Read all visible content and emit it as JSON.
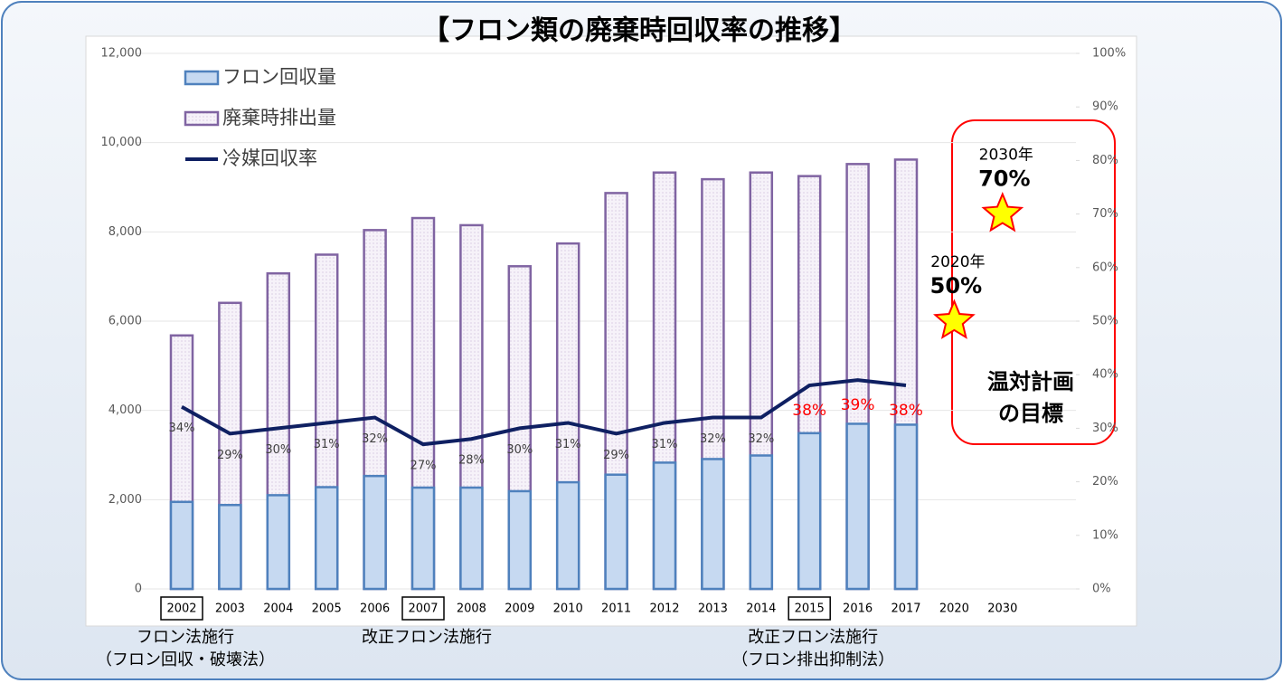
{
  "chart_data": {
    "type": "bar",
    "title": "【フロン類の廃棄時回収率の推移】",
    "categories": [
      "2002",
      "2003",
      "2004",
      "2005",
      "2006",
      "2007",
      "2008",
      "2009",
      "2010",
      "2011",
      "2012",
      "2013",
      "2014",
      "2015",
      "2016",
      "2017",
      "2020",
      "2030"
    ],
    "series": [
      {
        "name": "フロン回収量",
        "type": "bar",
        "color": "#4f81bd",
        "fill": "#c6d9f1",
        "values": [
          1950,
          1880,
          2100,
          2280,
          2530,
          2270,
          2270,
          2190,
          2390,
          2560,
          2830,
          2910,
          2990,
          3490,
          3700,
          3680,
          null,
          null
        ]
      },
      {
        "name": "廃棄時排出量",
        "type": "bar",
        "color": "#8064a2",
        "fill": "#f4eff8",
        "values": [
          5680,
          6410,
          7070,
          7490,
          8040,
          8310,
          8150,
          7230,
          7740,
          8870,
          9330,
          9180,
          9330,
          9250,
          9520,
          9620,
          null,
          null
        ]
      },
      {
        "name": "冷媒回収率",
        "type": "line",
        "axis": "y2",
        "color": "#0f2062",
        "values": [
          34,
          29,
          30,
          31,
          32,
          27,
          28,
          30,
          31,
          29,
          31,
          32,
          32,
          38,
          39,
          38,
          null,
          null
        ],
        "value_labels": [
          "34%",
          "29%",
          "30%",
          "31%",
          "32%",
          "27%",
          "28%",
          "30%",
          "31%",
          "29%",
          "31%",
          "32%",
          "32%",
          "38%",
          "39%",
          "38%",
          null,
          null
        ],
        "value_label_colors": [
          "#404040",
          "#404040",
          "#404040",
          "#404040",
          "#404040",
          "#404040",
          "#404040",
          "#404040",
          "#404040",
          "#404040",
          "#404040",
          "#404040",
          "#404040",
          "#ff0000",
          "#ff0000",
          "#ff0000",
          null,
          null
        ]
      }
    ],
    "ylim": [
      0,
      12000
    ],
    "yticks": [
      {
        "value": 0,
        "label": "0"
      },
      {
        "value": 2000,
        "label": "2,000"
      },
      {
        "value": 4000,
        "label": "4,000"
      },
      {
        "value": 6000,
        "label": "6,000"
      },
      {
        "value": 8000,
        "label": "8,000"
      },
      {
        "value": 10000,
        "label": "10,000"
      },
      {
        "value": 12000,
        "label": "12,000"
      }
    ],
    "y2lim": [
      0,
      100
    ],
    "y2ticks": [
      {
        "value": 0,
        "label": "0%"
      },
      {
        "value": 10,
        "label": "10%"
      },
      {
        "value": 20,
        "label": "20%"
      },
      {
        "value": 30,
        "label": "30%"
      },
      {
        "value": 40,
        "label": "40%"
      },
      {
        "value": 50,
        "label": "50%"
      },
      {
        "value": 60,
        "label": "60%"
      },
      {
        "value": 70,
        "label": "70%"
      },
      {
        "value": 80,
        "label": "80%"
      },
      {
        "value": 90,
        "label": "90%"
      },
      {
        "value": 100,
        "label": "100%"
      }
    ],
    "grid": true,
    "legend": "top-left",
    "targets": [
      {
        "category": "2020",
        "year_label": "2020年",
        "value": 50,
        "value_label": "50%"
      },
      {
        "category": "2030",
        "year_label": "2030年",
        "value": 70,
        "value_label": "70%"
      }
    ],
    "target_box_label": [
      "温対計画",
      "の目標"
    ],
    "annotations": [
      {
        "category": "2002",
        "lines": [
          "フロン法施行",
          "（フロン回収・破壊法）"
        ]
      },
      {
        "category": "2007",
        "lines": [
          "改正フロン法施行"
        ]
      },
      {
        "category": "2015",
        "lines": [
          "改正フロン法施行",
          "（フロン排出抑制法）"
        ]
      }
    ]
  }
}
